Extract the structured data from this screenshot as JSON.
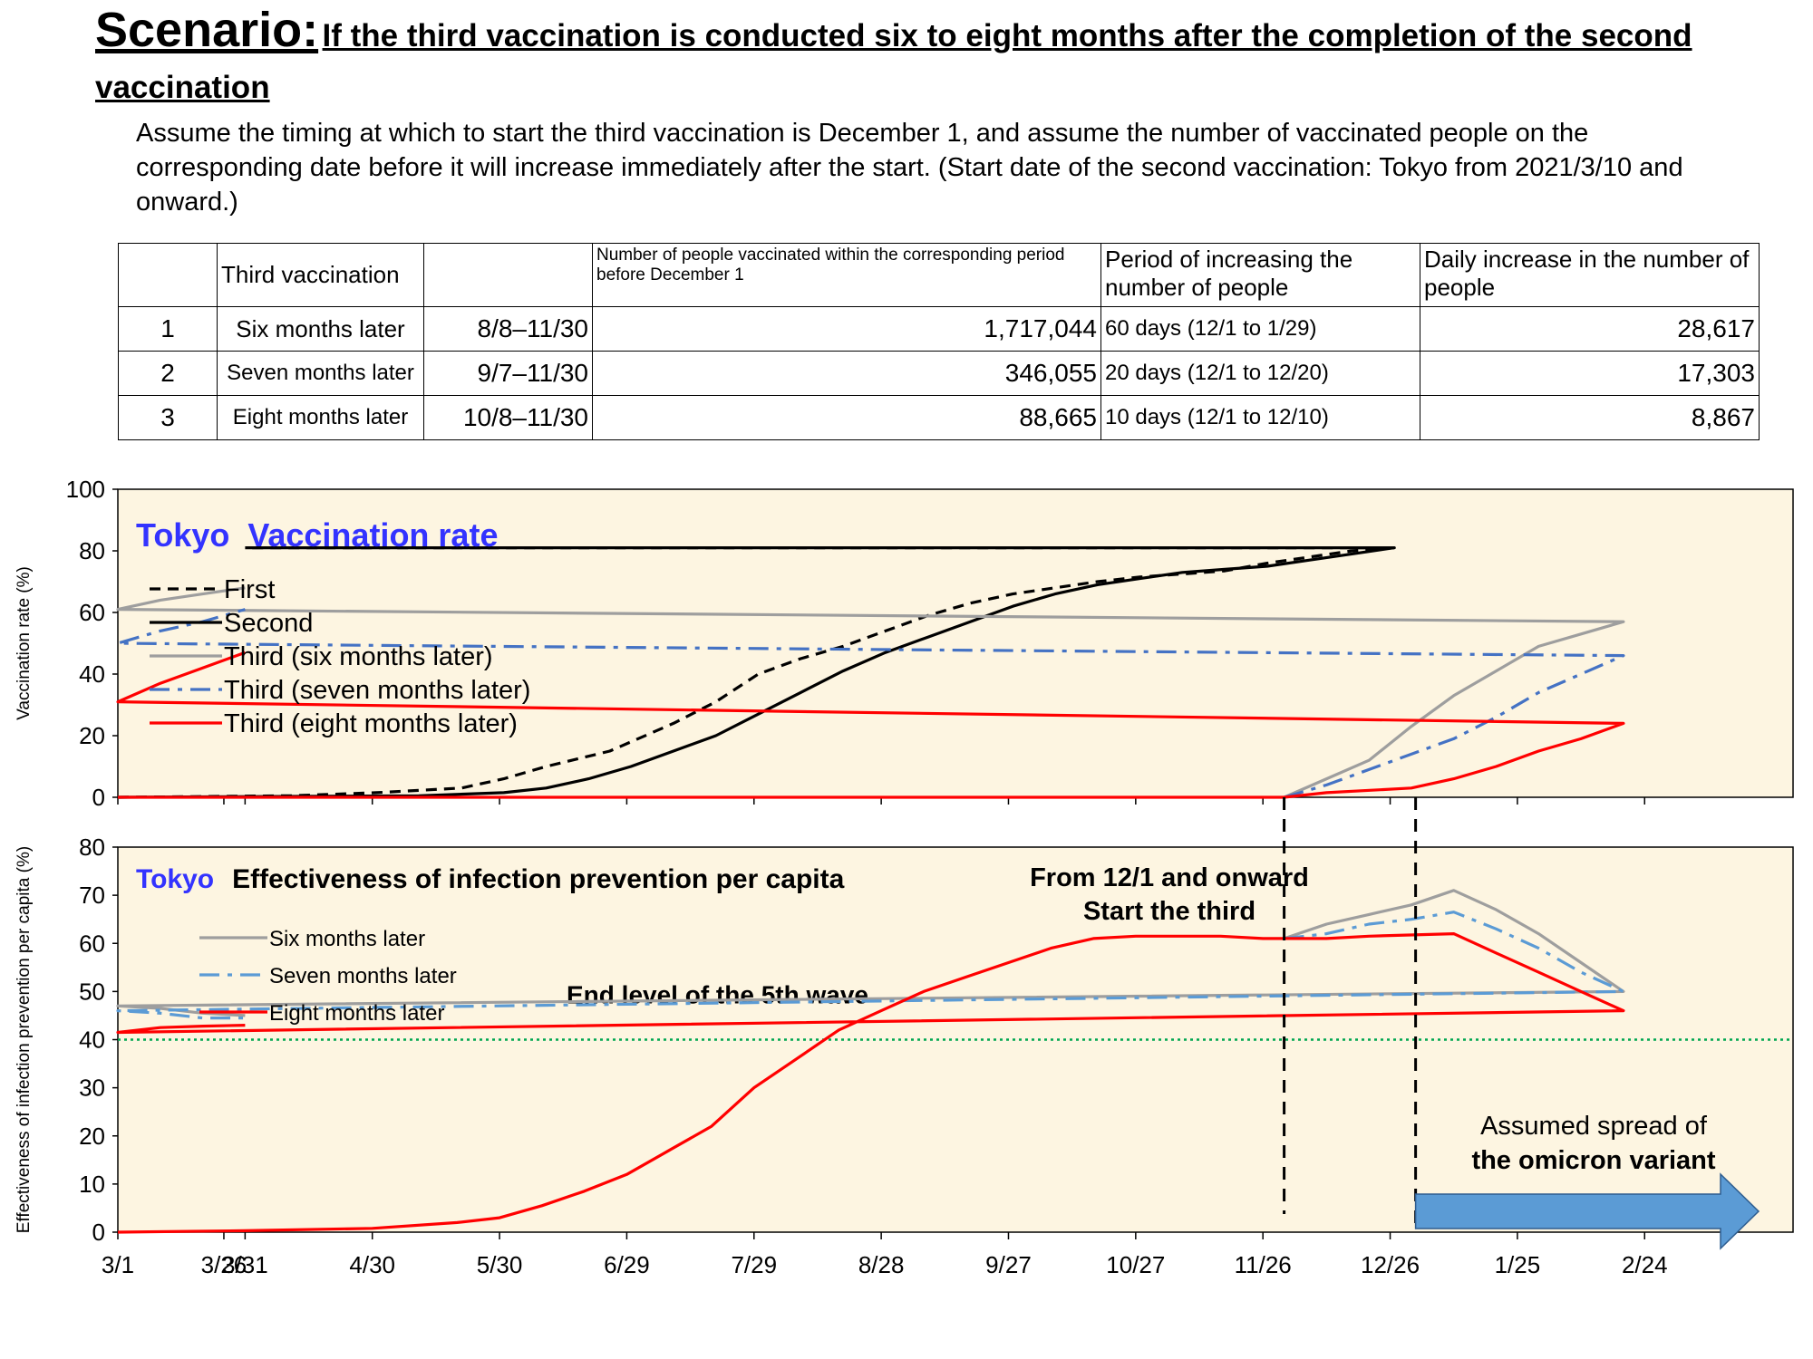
{
  "header": {
    "scenario_label": "Scenario:",
    "scenario_title": "If the third vaccination is conducted six to eight months after the completion of the second vaccination",
    "assumption": "Assume the timing at which to start the third vaccination is December 1, and assume the number of vaccinated people on the corresponding date before it will increase immediately after the start. (Start date of the second vaccination: Tokyo from 2021/3/10 and onward.)"
  },
  "table": {
    "headers": [
      "",
      "Third vaccination",
      "",
      "Number of people vaccinated within the corresponding period before December 1",
      "Period of increasing the number of people",
      "Daily increase in the number of people"
    ],
    "rows": [
      {
        "no": "1",
        "label": "Six months later",
        "period": "8/8–11/30",
        "vaccinated": "1,717,044",
        "increase_period": "60 days (12/1 to 1/29)",
        "daily": "28,617"
      },
      {
        "no": "2",
        "label": "Seven months later",
        "period": "9/7–11/30",
        "vaccinated": "346,055",
        "increase_period": "20 days (12/1 to 12/20)",
        "daily": "17,303"
      },
      {
        "no": "3",
        "label": "Eight months later",
        "period": "10/8–11/30",
        "vaccinated": "88,665",
        "increase_period": "10 days (12/1 to 12/10)",
        "daily": "8,867"
      }
    ]
  },
  "chart_data": [
    {
      "type": "line",
      "title_prefix": "Tokyo",
      "title": "Vaccination rate",
      "ylabel": "Vaccination rate (%)",
      "ylim": [
        0,
        100
      ],
      "yticks": [
        0,
        20,
        40,
        60,
        80,
        100
      ],
      "x_tick_labels": [
        "3/1",
        "3/31",
        "4/30",
        "5/30",
        "6/29",
        "7/29",
        "8/28",
        "9/27",
        "10/27",
        "11/26",
        "12/26",
        "1/25",
        "2/24",
        "3/26"
      ],
      "legend_position": "top-left",
      "series": [
        {
          "name": "First",
          "color": "#000000",
          "style": "dashed",
          "points": [
            [
              "3/1",
              0
            ],
            [
              "4/11",
              0.5
            ],
            [
              "5/1",
              1.5
            ],
            [
              "5/21",
              3
            ],
            [
              "5/31",
              6
            ],
            [
              "6/10",
              10
            ],
            [
              "6/25",
              15
            ],
            [
              "7/10",
              24
            ],
            [
              "7/20",
              31
            ],
            [
              "7/30",
              40
            ],
            [
              "8/9",
              45
            ],
            [
              "8/19",
              49
            ],
            [
              "8/29",
              54
            ],
            [
              "9/8",
              59
            ],
            [
              "9/18",
              63
            ],
            [
              "9/28",
              66
            ],
            [
              "10/8",
              68
            ],
            [
              "10/18",
              70
            ],
            [
              "10/28",
              71.5
            ],
            [
              "11/7",
              72.5
            ],
            [
              "11/17",
              73.5
            ],
            [
              "11/27",
              76
            ],
            [
              "12/7",
              78
            ],
            [
              "12/17",
              80
            ],
            [
              "12/27",
              81
            ],
            [
              "3/31",
              81
            ]
          ]
        },
        {
          "name": "Second",
          "color": "#000000",
          "style": "solid",
          "points": [
            [
              "3/1",
              0
            ],
            [
              "5/11",
              0.5
            ],
            [
              "5/31",
              1.5
            ],
            [
              "6/10",
              3
            ],
            [
              "6/20",
              6
            ],
            [
              "6/30",
              10
            ],
            [
              "7/10",
              15
            ],
            [
              "7/20",
              20
            ],
            [
              "7/30",
              27
            ],
            [
              "8/9",
              34
            ],
            [
              "8/19",
              41
            ],
            [
              "8/29",
              47
            ],
            [
              "9/8",
              52
            ],
            [
              "9/18",
              57
            ],
            [
              "9/28",
              62
            ],
            [
              "10/8",
              66
            ],
            [
              "10/18",
              69
            ],
            [
              "10/28",
              71
            ],
            [
              "11/7",
              73
            ],
            [
              "11/17",
              74
            ],
            [
              "11/27",
              75
            ],
            [
              "12/7",
              77
            ],
            [
              "12/17",
              79
            ],
            [
              "12/27",
              81
            ],
            [
              "3/31",
              81
            ]
          ]
        },
        {
          "name": "Third (six months later)",
          "color": "#9e9e9e",
          "style": "solid",
          "points": [
            [
              "12/1",
              0
            ],
            [
              "12/11",
              6
            ],
            [
              "12/21",
              12
            ],
            [
              "12/31",
              23
            ],
            [
              "1/10",
              33
            ],
            [
              "1/20",
              41
            ],
            [
              "1/30",
              49
            ],
            [
              "2/9",
              53
            ],
            [
              "2/19",
              57
            ],
            [
              "3/1",
              61
            ],
            [
              "3/11",
              64
            ],
            [
              "3/21",
              66
            ],
            [
              "3/31",
              68
            ]
          ]
        },
        {
          "name": "Third (seven months later)",
          "color": "#4472c4",
          "style": "dashdot",
          "points": [
            [
              "12/1",
              0
            ],
            [
              "12/11",
              4
            ],
            [
              "12/21",
              9
            ],
            [
              "12/31",
              14
            ],
            [
              "1/10",
              19
            ],
            [
              "1/20",
              26
            ],
            [
              "1/30",
              34
            ],
            [
              "2/9",
              40
            ],
            [
              "2/19",
              46
            ],
            [
              "3/1",
              50
            ],
            [
              "3/11",
              54
            ],
            [
              "3/21",
              57
            ],
            [
              "3/31",
              61
            ]
          ]
        },
        {
          "name": "Third (eight months later)",
          "color": "#ff0000",
          "style": "solid",
          "points": [
            [
              "3/1",
              0
            ],
            [
              "12/1",
              0
            ],
            [
              "12/11",
              1.5
            ],
            [
              "12/31",
              3
            ],
            [
              "1/10",
              6
            ],
            [
              "1/20",
              10
            ],
            [
              "1/30",
              15
            ],
            [
              "2/9",
              19
            ],
            [
              "2/19",
              24
            ],
            [
              "3/1",
              31
            ],
            [
              "3/11",
              37
            ],
            [
              "3/21",
              42
            ],
            [
              "3/31",
              47
            ]
          ]
        }
      ]
    },
    {
      "type": "line",
      "title_prefix": "Tokyo",
      "title": "Effectiveness of infection prevention per capita",
      "ylabel": "Effectiveness of infection prevention per capita (%)",
      "ylim": [
        0,
        80
      ],
      "yticks": [
        0,
        10,
        20,
        30,
        40,
        50,
        60,
        70,
        80
      ],
      "x_tick_labels": [
        "3/1",
        "3/31",
        "4/30",
        "5/30",
        "6/29",
        "7/29",
        "8/28",
        "9/27",
        "10/27",
        "11/26",
        "12/26",
        "1/25",
        "2/24",
        "3/26"
      ],
      "legend_position": "top-left",
      "reference_line": {
        "y": 40,
        "color": "#00a651",
        "label": "End level of the 5th wave"
      },
      "annotations": {
        "start_third_line1": "From 12/1 and onward",
        "start_third_line2": "Start the third",
        "omicron_line1": "Assumed spread of",
        "omicron_line2": "the omicron variant",
        "omicron_arrow_color": "#5b9bd5"
      },
      "vertical_markers": [
        "12/1",
        "1/1"
      ],
      "series": [
        {
          "name": "Six months later",
          "color": "#9e9e9e",
          "style": "solid",
          "points": [
            [
              "12/1",
              61
            ],
            [
              "12/11",
              64
            ],
            [
              "12/21",
              66
            ],
            [
              "12/31",
              68
            ],
            [
              "1/10",
              71
            ],
            [
              "1/20",
              67
            ],
            [
              "1/30",
              62
            ],
            [
              "2/9",
              56
            ],
            [
              "2/19",
              50
            ],
            [
              "3/1",
              47
            ],
            [
              "3/11",
              46.5
            ],
            [
              "3/21",
              45.5
            ],
            [
              "3/31",
              45
            ]
          ]
        },
        {
          "name": "Seven months later",
          "color": "#5b9bd5",
          "style": "dashdot",
          "points": [
            [
              "12/1",
              61
            ],
            [
              "12/11",
              62
            ],
            [
              "12/21",
              64
            ],
            [
              "12/31",
              65
            ],
            [
              "1/10",
              66.5
            ],
            [
              "1/20",
              63
            ],
            [
              "1/30",
              59
            ],
            [
              "2/9",
              54
            ],
            [
              "2/19",
              50
            ],
            [
              "3/1",
              46
            ],
            [
              "3/11",
              45.5
            ],
            [
              "3/21",
              44.5
            ],
            [
              "3/31",
              44.5
            ]
          ]
        },
        {
          "name": "Eight months later",
          "color": "#ff0000",
          "style": "solid",
          "points": [
            [
              "3/1",
              0
            ],
            [
              "3/31",
              0.3
            ],
            [
              "4/30",
              0.8
            ],
            [
              "5/20",
              2
            ],
            [
              "5/30",
              3
            ],
            [
              "6/9",
              5.5
            ],
            [
              "6/19",
              8.5
            ],
            [
              "6/29",
              12
            ],
            [
              "7/9",
              17
            ],
            [
              "7/19",
              22
            ],
            [
              "7/29",
              30
            ],
            [
              "8/8",
              36
            ],
            [
              "8/18",
              42
            ],
            [
              "8/28",
              46
            ],
            [
              "9/7",
              50
            ],
            [
              "9/17",
              53
            ],
            [
              "9/27",
              56
            ],
            [
              "10/7",
              59
            ],
            [
              "10/17",
              61
            ],
            [
              "10/27",
              61.5
            ],
            [
              "11/6",
              61.5
            ],
            [
              "11/16",
              61.5
            ],
            [
              "11/26",
              61
            ],
            [
              "12/11",
              61
            ],
            [
              "12/21",
              61.5
            ],
            [
              "1/10",
              62
            ],
            [
              "1/20",
              58
            ],
            [
              "1/30",
              54
            ],
            [
              "2/9",
              50
            ],
            [
              "2/19",
              46
            ],
            [
              "3/1",
              41.5
            ],
            [
              "3/11",
              42.5
            ],
            [
              "3/21",
              42.8
            ],
            [
              "3/31",
              43
            ]
          ]
        }
      ]
    }
  ]
}
